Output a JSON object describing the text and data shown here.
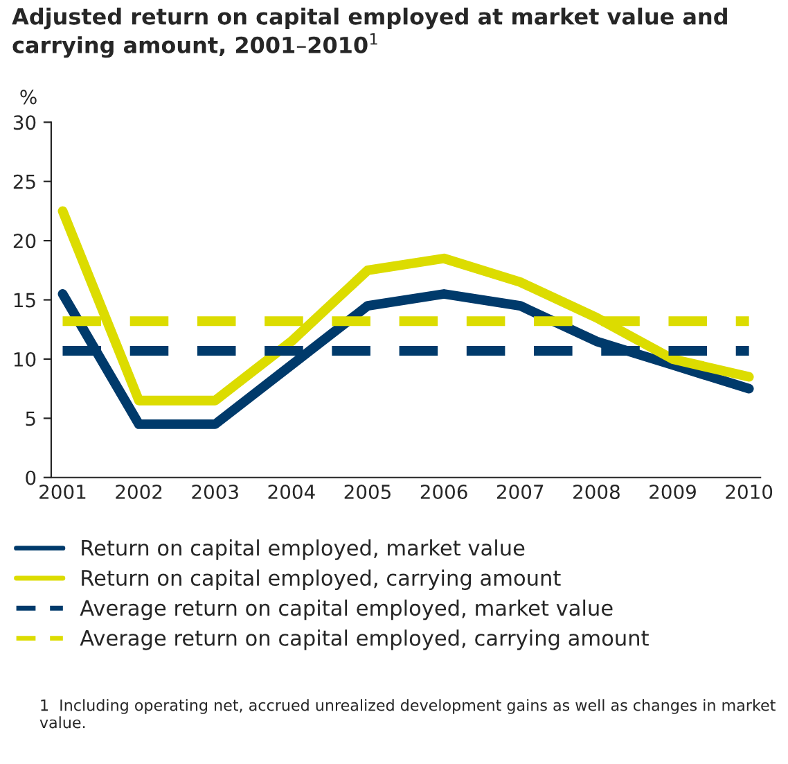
{
  "chart_data": {
    "type": "line",
    "title": "Adjusted return on capital employed at market value and carrying amount, 2001–2010$^{1}$",
    "ylabel": "%",
    "categories": [
      "2001",
      "2002",
      "2003",
      "2004",
      "2005",
      "2006",
      "2007",
      "2008",
      "2009",
      "2010"
    ],
    "series": [
      {
        "name": "Return on capital employed, market value",
        "color": "#003a6b",
        "values": [
          15.5,
          4.5,
          4.5,
          9.5,
          14.5,
          15.5,
          14.5,
          11.5,
          9.5,
          7.5
        ]
      },
      {
        "name": "Return on capital employed, carrying amount",
        "color": "#dcdc00",
        "values": [
          22.5,
          6.5,
          6.5,
          11.5,
          17.5,
          18.5,
          16.5,
          13.5,
          10,
          8.5
        ]
      },
      {
        "name": "Average return on capital employed, market value",
        "color": "#003a6b",
        "line_style": "dashed",
        "values": [
          10.7,
          10.7,
          10.7,
          10.7,
          10.7,
          10.7,
          10.7,
          10.7,
          10.7,
          10.7
        ]
      },
      {
        "name": "Average return on capital employed, carrying amount",
        "color": "#dcdc00",
        "line_style": "dashed",
        "values": [
          13.2,
          13.2,
          13.2,
          13.2,
          13.2,
          13.2,
          13.2,
          13.2,
          13.2,
          13.2
        ]
      }
    ],
    "ylim": [
      0,
      30
    ],
    "yticks": [
      0,
      5,
      10,
      15,
      20,
      25,
      30
    ],
    "legend": "bottom",
    "grid": false,
    "marker": "none",
    "annotations": [
      "1  Including operating net, accrued unrealized development gains as well as changes in market value."
    ]
  }
}
